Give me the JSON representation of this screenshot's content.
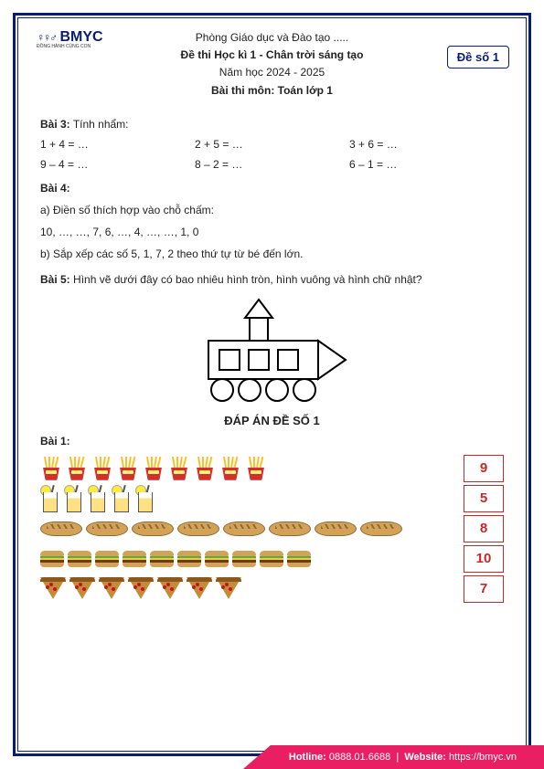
{
  "logo": {
    "brand": "BMYC",
    "tagline": "ĐỒNG HÀNH CÙNG CON"
  },
  "header": {
    "line1": "Phòng Giáo dục và Đào tạo .....",
    "line2": "Đề thi Học kì 1 - Chân trời sáng tạo",
    "line3": "Năm học 2024 - 2025",
    "line4": "Bài thi môn: Toán lớp 1"
  },
  "exam_badge": "Đề số 1",
  "bai3": {
    "title": "Bài 3:",
    "instruction": "Tính nhẩm:",
    "row1": {
      "a": "1 + 4 = …",
      "b": "2 + 5 = …",
      "c": "3 + 6 = …"
    },
    "row2": {
      "a": "9 – 4 = …",
      "b": "8 – 2 = …",
      "c": "6 – 1 = …"
    }
  },
  "bai4": {
    "title": "Bài 4:",
    "a_label": "a) Điền số thích hợp vào chỗ chấm:",
    "a_seq": "10, …, …, 7, 6, …, 4, …, …, 1, 0",
    "b_label": "b) Sắp xếp các số 5, 1, 7, 2 theo thứ tự từ bé đến lớn."
  },
  "bai5": {
    "title": "Bài 5:",
    "question": "Hình vẽ dưới đây có bao nhiêu hình tròn, hình vuông và hình chữ nhật?"
  },
  "answer_title": "ĐÁP ÁN ĐỀ SỐ 1",
  "bai1": {
    "title": "Bài 1:",
    "rows": [
      {
        "type": "fries",
        "count": 9,
        "answer": "9"
      },
      {
        "type": "drink",
        "count": 5,
        "answer": "5"
      },
      {
        "type": "bread",
        "count": 8,
        "answer": "8"
      },
      {
        "type": "burger",
        "count": 10,
        "answer": "10"
      },
      {
        "type": "pizza",
        "count": 7,
        "answer": "7"
      }
    ]
  },
  "footer": {
    "hotline_label": "Hotline:",
    "hotline_value": "0888.01.6688",
    "sep": "|",
    "website_label": "Website:",
    "website_value": "https://bmyc.vn"
  },
  "colors": {
    "border": "#0a1e6e",
    "accent_red": "#c62828",
    "footer_bg": "#e91e63"
  }
}
